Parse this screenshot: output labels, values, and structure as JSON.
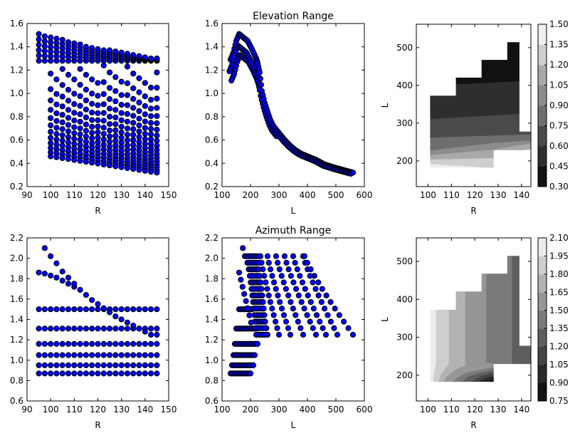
{
  "chart_data": [
    {
      "id": "elev-R",
      "type": "scatter",
      "title": "",
      "xlabel": "R",
      "ylabel": "",
      "xlim": [
        90,
        150
      ],
      "ylim": [
        0.2,
        1.6
      ],
      "xticks": [
        "90",
        "100",
        "110",
        "120",
        "130",
        "140",
        "150"
      ],
      "yticks": [
        "0.2",
        "0.4",
        "0.6",
        "0.8",
        "1.0",
        "1.2",
        "1.4",
        "1.6"
      ],
      "marker_color": "#0000ff",
      "series": [
        {
          "name": "top-band-rows",
          "R": [
            95,
            97.5,
            100,
            102.5,
            105,
            107.5,
            110,
            112.5,
            115,
            117.5,
            120,
            122.5,
            125,
            127.5,
            130,
            132.5,
            135,
            137.5,
            140,
            142.5,
            145
          ],
          "top": [
            1.51,
            1.49,
            1.48,
            1.47,
            1.46,
            1.44,
            1.43,
            1.42,
            1.4,
            1.39,
            1.38,
            1.37,
            1.37,
            1.36,
            1.35,
            1.34,
            1.33,
            1.32,
            1.31,
            1.3,
            1.3
          ],
          "bottom": 1.28
        },
        {
          "name": "decay-rows",
          "R_start": 100,
          "R_end": 145,
          "upper": [
            1.17,
            1.21,
            1.16,
            1.21,
            1.16,
            1.24,
            1.23,
            1.18,
            1.18
          ],
          "lower_first": 0.46,
          "lower_last": 0.32
        }
      ]
    },
    {
      "id": "elev-L",
      "type": "scatter",
      "title": "Elevation Range",
      "xlabel": "L",
      "ylabel": "",
      "xlim": [
        100,
        600
      ],
      "ylim": [
        0.2,
        1.6
      ],
      "xticks": [
        "100",
        "200",
        "300",
        "400",
        "500",
        "600"
      ],
      "yticks": [
        "0.2",
        "0.4",
        "0.6",
        "0.8",
        "1.0",
        "1.2",
        "1.4",
        "1.6"
      ],
      "marker_color": "#0000ff",
      "curve_points": [
        [
          130,
          1.29
        ],
        [
          140,
          1.35
        ],
        [
          150,
          1.45
        ],
        [
          160,
          1.51
        ],
        [
          175,
          1.48
        ],
        [
          190,
          1.45
        ],
        [
          205,
          1.38
        ],
        [
          220,
          1.3
        ],
        [
          225,
          1.26
        ],
        [
          232,
          1.18
        ],
        [
          240,
          1.02
        ],
        [
          250,
          0.92
        ],
        [
          260,
          0.84
        ],
        [
          270,
          0.77
        ],
        [
          280,
          0.72
        ],
        [
          300,
          0.66
        ],
        [
          320,
          0.6
        ],
        [
          340,
          0.55
        ],
        [
          360,
          0.51
        ],
        [
          380,
          0.48
        ],
        [
          400,
          0.46
        ],
        [
          430,
          0.43
        ],
        [
          460,
          0.39
        ],
        [
          500,
          0.36
        ],
        [
          530,
          0.34
        ],
        [
          560,
          0.32
        ]
      ]
    },
    {
      "id": "elev-contour",
      "type": "heatmap",
      "title": "",
      "xlabel": "R",
      "ylabel": "L",
      "xlim": [
        95,
        144
      ],
      "ylim": [
        132,
        562
      ],
      "xticks": [
        "100",
        "110",
        "120",
        "130",
        "140"
      ],
      "yticks": [
        "200",
        "300",
        "400",
        "500"
      ],
      "colorbar_ticks": [
        "0.30",
        "0.45",
        "0.60",
        "0.75",
        "0.90",
        "1.05",
        "1.20",
        "1.35",
        "1.50"
      ],
      "colorbar_levels": [
        0.3,
        0.45,
        0.6,
        0.75,
        0.9,
        1.05,
        1.2,
        1.35,
        1.5
      ],
      "level_colors": [
        "#111111",
        "#2e2e2e",
        "#4a4a4a",
        "#6e6e6e",
        "#8c8c8c",
        "#a9a9a9",
        "#cfcfcf",
        "#efefef"
      ],
      "bands": [
        {
          "level": 0,
          "poly": [
            [
              112,
              420
            ],
            [
              123,
              420
            ],
            [
              123,
              467
            ],
            [
              134,
              467
            ],
            [
              134,
              514
            ],
            [
              139,
              514
            ],
            [
              139,
              410
            ],
            [
              112,
              402
            ]
          ]
        },
        {
          "level": 1,
          "poly": [
            [
              101,
              372
            ],
            [
              112,
              372
            ],
            [
              112,
              402
            ],
            [
              139,
              410
            ],
            [
              139,
              324
            ],
            [
              101,
              310
            ]
          ]
        },
        {
          "level": 2,
          "poly": [
            [
              101,
              310
            ],
            [
              139,
              324
            ],
            [
              139,
              277
            ],
            [
              145,
              277
            ],
            [
              145,
              270
            ],
            [
              101,
              261
            ]
          ]
        },
        {
          "level": 3,
          "poly": [
            [
              101,
              261
            ],
            [
              145,
              270
            ],
            [
              145,
              254
            ],
            [
              128,
              247
            ],
            [
              101,
              227
            ]
          ]
        },
        {
          "level": 4,
          "poly": [
            [
              101,
              227
            ],
            [
              128,
              247
            ],
            [
              145,
              254
            ],
            [
              145,
              246
            ],
            [
              138,
              240
            ],
            [
              128,
              229
            ],
            [
              101,
              215
            ]
          ]
        },
        {
          "level": 5,
          "poly": [
            [
              101,
              215
            ],
            [
              128,
              229
            ],
            [
              138,
              240
            ],
            [
              145,
              246
            ],
            [
              145,
              231
            ],
            [
              140,
              229
            ],
            [
              128,
              229
            ],
            [
              128,
              207
            ],
            [
              101,
              203
            ]
          ]
        },
        {
          "level": 6,
          "poly": [
            [
              101,
              203
            ],
            [
              128,
              207
            ],
            [
              128,
              183
            ],
            [
              122,
              183
            ],
            [
              101,
              191
            ]
          ]
        },
        {
          "level": 7,
          "poly": [
            [
              101,
              191
            ],
            [
              122,
              183
            ],
            [
              101,
              183
            ]
          ]
        }
      ]
    },
    {
      "id": "azim-R",
      "type": "scatter",
      "title": "",
      "xlabel": "R",
      "ylabel": "",
      "xlim": [
        90,
        150
      ],
      "ylim": [
        0.6,
        2.2
      ],
      "xticks": [
        "90",
        "100",
        "110",
        "120",
        "130",
        "140",
        "150"
      ],
      "yticks": [
        "0.6",
        "0.8",
        "1.0",
        "1.2",
        "1.4",
        "1.6",
        "1.8",
        "2.0",
        "2.2"
      ],
      "marker_color": "#0000ff",
      "R": [
        95,
        97.5,
        100,
        102.5,
        105,
        107.5,
        110,
        112.5,
        115,
        117.5,
        120,
        122.5,
        125,
        127.5,
        130,
        132.5,
        135,
        137.5,
        140,
        142.5,
        145
      ],
      "flat_levels": [
        0.87,
        0.95,
        1.05,
        1.16,
        1.31,
        1.5
      ],
      "diag_top": [
        [
          97.5,
          2.1
        ],
        [
          100,
          2.02
        ],
        [
          102.5,
          1.95
        ],
        [
          105,
          1.87
        ],
        [
          107.5,
          1.81
        ],
        [
          110,
          1.75
        ],
        [
          112.5,
          1.69
        ],
        [
          115,
          1.64
        ],
        [
          117.5,
          1.59
        ],
        [
          120,
          1.55
        ],
        [
          122.5,
          1.51
        ],
        [
          125,
          1.47
        ],
        [
          127.5,
          1.43
        ],
        [
          130,
          1.4
        ],
        [
          132.5,
          1.37
        ],
        [
          135,
          1.34
        ],
        [
          137.5,
          1.31
        ],
        [
          140,
          1.28
        ],
        [
          142.5,
          1.25
        ]
      ],
      "diag_second": [
        [
          95,
          1.86
        ],
        [
          97.5,
          1.85
        ],
        [
          100,
          1.83
        ],
        [
          102.5,
          1.81
        ],
        [
          105,
          1.78
        ],
        [
          107.5,
          1.75
        ],
        [
          110,
          1.72
        ]
      ]
    },
    {
      "id": "azim-L",
      "type": "scatter",
      "title": "Azimuth Range",
      "xlabel": "L",
      "ylabel": "",
      "xlim": [
        100,
        600
      ],
      "ylim": [
        0.6,
        2.2
      ],
      "xticks": [
        "100",
        "200",
        "300",
        "400",
        "500",
        "600"
      ],
      "yticks": [
        "0.6",
        "0.8",
        "1.0",
        "1.2",
        "1.4",
        "1.6",
        "1.8",
        "2.0",
        "2.2"
      ],
      "marker_color": "#0000ff",
      "low_rows": [
        [
          0.87,
          130,
          202
        ],
        [
          0.95,
          135,
          210
        ],
        [
          1.05,
          140,
          215
        ],
        [
          1.16,
          145,
          225
        ],
        [
          1.31,
          150,
          220
        ],
        [
          1.5,
          160,
          205
        ]
      ],
      "fan_end_L": [
        230,
        260,
        300,
        340,
        385,
        430,
        465,
        505,
        560
      ],
      "fan_start_L": [
        200,
        215,
        235,
        260,
        290,
        320,
        350,
        385,
        390
      ],
      "fan_top": 2.02,
      "fan_bottom": 1.25,
      "outlier": [
        173,
        2.1
      ]
    },
    {
      "id": "azim-contour",
      "type": "heatmap",
      "title": "",
      "xlabel": "R",
      "ylabel": "L",
      "xlim": [
        95,
        144
      ],
      "ylim": [
        132,
        562
      ],
      "xticks": [
        "100",
        "110",
        "120",
        "130",
        "140"
      ],
      "yticks": [
        "200",
        "300",
        "400",
        "500"
      ],
      "colorbar_ticks": [
        "0.75",
        "0.90",
        "1.05",
        "1.20",
        "1.35",
        "1.50",
        "1.65",
        "1.80",
        "1.95",
        "2.10"
      ],
      "colorbar_levels": [
        0.75,
        0.9,
        1.05,
        1.2,
        1.35,
        1.5,
        1.65,
        1.8,
        1.95,
        2.1
      ],
      "level_colors": [
        "#111111",
        "#2a2a2a",
        "#444444",
        "#5e5e5e",
        "#7a7a7a",
        "#969696",
        "#b2b2b2",
        "#cecece",
        "#ececec"
      ],
      "bands": [
        {
          "level": 8,
          "poly": [
            [
              101,
              372
            ],
            [
              103.5,
              372
            ],
            [
              103.5,
              230
            ],
            [
              102.5,
              200
            ],
            [
              102.5,
              183
            ],
            [
              101,
              183
            ]
          ]
        },
        {
          "level": 7,
          "poly": [
            [
              103.5,
              372
            ],
            [
              109,
              372
            ],
            [
              109,
              230
            ],
            [
              106,
              205
            ],
            [
              104.5,
              183
            ],
            [
              102.5,
              183
            ],
            [
              102.5,
              200
            ],
            [
              103.5,
              230
            ]
          ]
        },
        {
          "level": 6,
          "poly": [
            [
              109,
              372
            ],
            [
              112,
              372
            ],
            [
              112,
              420
            ],
            [
              116,
              420
            ],
            [
              116,
              225
            ],
            [
              112,
              215
            ],
            [
              108,
              195
            ],
            [
              107,
              183
            ],
            [
              104.5,
              183
            ],
            [
              106,
              205
            ],
            [
              109,
              230
            ]
          ]
        },
        {
          "level": 5,
          "poly": [
            [
              116,
              420
            ],
            [
              123,
              420
            ],
            [
              123,
              467
            ],
            [
              125,
              467
            ],
            [
              125,
              232
            ],
            [
              120,
              222
            ],
            [
              116,
              225
            ]
          ]
        },
        {
          "level": 4,
          "poly": [
            [
              125,
              467
            ],
            [
              134,
              467
            ],
            [
              134,
              514
            ],
            [
              136,
              514
            ],
            [
              136,
              230
            ],
            [
              128,
              230
            ],
            [
              125,
              232
            ]
          ]
        },
        {
          "level": 3,
          "poly": [
            [
              136,
              514
            ],
            [
              139,
              514
            ],
            [
              139,
              277
            ],
            [
              145,
              277
            ],
            [
              145,
              230
            ],
            [
              136,
              230
            ]
          ]
        },
        {
          "level": 5,
          "poly": [
            [
              108,
              195
            ],
            [
              112,
              215
            ],
            [
              116,
              225
            ],
            [
              120,
              222
            ],
            [
              125,
              232
            ],
            [
              128,
              230
            ],
            [
              128,
              220
            ],
            [
              122,
              213
            ],
            [
              116,
              205
            ],
            [
              112,
              190
            ],
            [
              111,
              183
            ],
            [
              107,
              183
            ]
          ]
        },
        {
          "level": 4,
          "poly": [
            [
              111,
              183
            ],
            [
              112,
              190
            ],
            [
              116,
              205
            ],
            [
              122,
              213
            ],
            [
              128,
              220
            ],
            [
              128,
              212
            ],
            [
              122,
              205
            ],
            [
              117,
              195
            ],
            [
              115,
              183
            ]
          ]
        },
        {
          "level": 3,
          "poly": [
            [
              115,
              183
            ],
            [
              117,
              195
            ],
            [
              122,
              205
            ],
            [
              128,
              212
            ],
            [
              128,
              205
            ],
            [
              123,
              198
            ],
            [
              119,
              183
            ]
          ]
        },
        {
          "level": 2,
          "poly": [
            [
              119,
              183
            ],
            [
              123,
              198
            ],
            [
              128,
              205
            ],
            [
              128,
              198
            ],
            [
              124,
              190
            ],
            [
              122,
              183
            ]
          ]
        },
        {
          "level": 1,
          "poly": [
            [
              122,
              183
            ],
            [
              124,
              190
            ],
            [
              128,
              198
            ],
            [
              128,
              191
            ],
            [
              126,
              183
            ]
          ]
        },
        {
          "level": 0,
          "poly": [
            [
              126,
              183
            ],
            [
              128,
              191
            ],
            [
              128,
              183
            ]
          ]
        }
      ]
    }
  ]
}
